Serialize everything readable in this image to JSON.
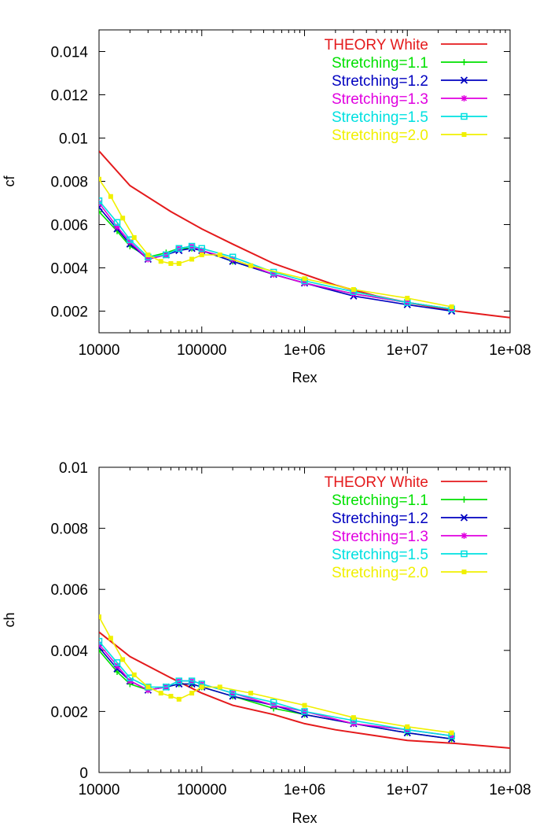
{
  "chart_data": [
    {
      "type": "line",
      "xlabel": "Rex",
      "ylabel": "cf",
      "xscale": "log",
      "xlim": [
        10000,
        100000000
      ],
      "ylim": [
        0.001,
        0.015
      ],
      "x_ticks": [
        "10000",
        "100000",
        "1e+06",
        "1e+07",
        "1e+08"
      ],
      "y_ticks": [
        "0.002",
        "0.004",
        "0.006",
        "0.008",
        "0.01",
        "0.012",
        "0.014"
      ],
      "legend_position": "top-right",
      "series": [
        {
          "name": "THEORY White",
          "color": "#e41a1c",
          "marker": "none",
          "x": [
            10000,
            20000,
            50000,
            100000,
            200000,
            500000,
            1000000,
            2000000,
            5000000,
            10000000,
            30000000,
            100000000
          ],
          "y": [
            0.0094,
            0.0078,
            0.0066,
            0.0058,
            0.0051,
            0.0042,
            0.0037,
            0.0032,
            0.0027,
            0.0024,
            0.002,
            0.0017
          ]
        },
        {
          "name": "Stretching=1.1",
          "color": "#00e000",
          "marker": "plus",
          "x": [
            10000,
            15000,
            20000,
            30000,
            45000,
            60000,
            80000,
            100000,
            200000,
            500000,
            1000000,
            3000000,
            10000000,
            27000000
          ],
          "y": [
            0.0066,
            0.0057,
            0.005,
            0.0045,
            0.0047,
            0.0049,
            0.0049,
            0.0048,
            0.0043,
            0.0037,
            0.0033,
            0.0028,
            0.0024,
            0.0021
          ]
        },
        {
          "name": "Stretching=1.2",
          "color": "#0000c0",
          "marker": "cross",
          "x": [
            10000,
            15000,
            20000,
            30000,
            45000,
            60000,
            80000,
            100000,
            200000,
            500000,
            1000000,
            3000000,
            10000000,
            27000000
          ],
          "y": [
            0.0068,
            0.0058,
            0.0051,
            0.0044,
            0.0046,
            0.0048,
            0.0049,
            0.0048,
            0.0043,
            0.0037,
            0.0033,
            0.0027,
            0.0023,
            0.002
          ]
        },
        {
          "name": "Stretching=1.3",
          "color": "#e000e0",
          "marker": "star",
          "x": [
            10000,
            15000,
            20000,
            30000,
            45000,
            60000,
            80000,
            100000,
            200000,
            500000,
            1000000,
            3000000,
            10000000,
            27000000
          ],
          "y": [
            0.007,
            0.0059,
            0.0052,
            0.0044,
            0.0046,
            0.0049,
            0.005,
            0.0048,
            0.0044,
            0.0037,
            0.0033,
            0.0028,
            0.0024,
            0.0021
          ]
        },
        {
          "name": "Stretching=1.5",
          "color": "#00e0e0",
          "marker": "square",
          "x": [
            10000,
            15000,
            20000,
            30000,
            45000,
            60000,
            80000,
            100000,
            200000,
            500000,
            1000000,
            3000000,
            10000000,
            27000000
          ],
          "y": [
            0.0071,
            0.0061,
            0.0053,
            0.0045,
            0.0046,
            0.0049,
            0.005,
            0.0049,
            0.0045,
            0.0038,
            0.0034,
            0.0029,
            0.0024,
            0.0021
          ]
        },
        {
          "name": "Stretching=2.0",
          "color": "#f0f000",
          "marker": "filled-square",
          "x": [
            10000,
            13000,
            17000,
            22000,
            30000,
            40000,
            50000,
            60000,
            80000,
            100000,
            150000,
            300000,
            1000000,
            3000000,
            10000000,
            27000000
          ],
          "y": [
            0.0081,
            0.0073,
            0.0063,
            0.0054,
            0.0046,
            0.0043,
            0.0042,
            0.0042,
            0.0044,
            0.0046,
            0.0046,
            0.0041,
            0.0035,
            0.003,
            0.0026,
            0.0022
          ]
        }
      ]
    },
    {
      "type": "line",
      "xlabel": "Rex",
      "ylabel": "ch",
      "xscale": "log",
      "xlim": [
        10000,
        100000000
      ],
      "ylim": [
        0,
        0.01
      ],
      "x_ticks": [
        "10000",
        "100000",
        "1e+06",
        "1e+07",
        "1e+08"
      ],
      "y_ticks": [
        "0",
        "0.002",
        "0.004",
        "0.006",
        "0.008",
        "0.01"
      ],
      "legend_position": "top-right",
      "series": [
        {
          "name": "THEORY White",
          "color": "#e41a1c",
          "marker": "none",
          "x": [
            10000,
            20000,
            50000,
            100000,
            200000,
            500000,
            1000000,
            2000000,
            5000000,
            10000000,
            30000000,
            100000000
          ],
          "y": [
            0.0046,
            0.0038,
            0.0031,
            0.0026,
            0.0022,
            0.0019,
            0.0016,
            0.0014,
            0.0012,
            0.00105,
            0.00095,
            0.0008
          ]
        },
        {
          "name": "Stretching=1.1",
          "color": "#00e000",
          "marker": "plus",
          "x": [
            10000,
            15000,
            20000,
            30000,
            45000,
            60000,
            80000,
            100000,
            200000,
            500000,
            1000000,
            3000000,
            10000000,
            27000000
          ],
          "y": [
            0.004,
            0.0033,
            0.0029,
            0.0027,
            0.0028,
            0.0029,
            0.0029,
            0.0028,
            0.0025,
            0.0021,
            0.0019,
            0.0016,
            0.0013,
            0.0011
          ]
        },
        {
          "name": "Stretching=1.2",
          "color": "#0000c0",
          "marker": "cross",
          "x": [
            10000,
            15000,
            20000,
            30000,
            45000,
            60000,
            80000,
            100000,
            200000,
            500000,
            1000000,
            3000000,
            10000000,
            27000000
          ],
          "y": [
            0.0041,
            0.0034,
            0.003,
            0.0027,
            0.0028,
            0.0029,
            0.0029,
            0.0028,
            0.0025,
            0.0022,
            0.0019,
            0.0016,
            0.0013,
            0.0011
          ]
        },
        {
          "name": "Stretching=1.3",
          "color": "#e000e0",
          "marker": "star",
          "x": [
            10000,
            15000,
            20000,
            30000,
            45000,
            60000,
            80000,
            100000,
            200000,
            500000,
            1000000,
            3000000,
            10000000,
            27000000
          ],
          "y": [
            0.0042,
            0.0035,
            0.003,
            0.0027,
            0.0028,
            0.003,
            0.003,
            0.0029,
            0.0026,
            0.0022,
            0.002,
            0.0016,
            0.0014,
            0.0012
          ]
        },
        {
          "name": "Stretching=1.5",
          "color": "#00e0e0",
          "marker": "square",
          "x": [
            10000,
            15000,
            20000,
            30000,
            45000,
            60000,
            80000,
            100000,
            200000,
            500000,
            1000000,
            3000000,
            10000000,
            27000000
          ],
          "y": [
            0.0043,
            0.0036,
            0.0031,
            0.0028,
            0.0028,
            0.003,
            0.003,
            0.0029,
            0.0026,
            0.0023,
            0.002,
            0.0017,
            0.0014,
            0.0012
          ]
        },
        {
          "name": "Stretching=2.0",
          "color": "#f0f000",
          "marker": "filled-square",
          "x": [
            10000,
            13000,
            17000,
            22000,
            30000,
            40000,
            50000,
            60000,
            80000,
            100000,
            150000,
            300000,
            1000000,
            3000000,
            10000000,
            27000000
          ],
          "y": [
            0.0051,
            0.0044,
            0.0037,
            0.0032,
            0.0028,
            0.0026,
            0.0025,
            0.0024,
            0.0026,
            0.0028,
            0.0028,
            0.0026,
            0.0022,
            0.0018,
            0.0015,
            0.0013
          ]
        }
      ]
    }
  ]
}
